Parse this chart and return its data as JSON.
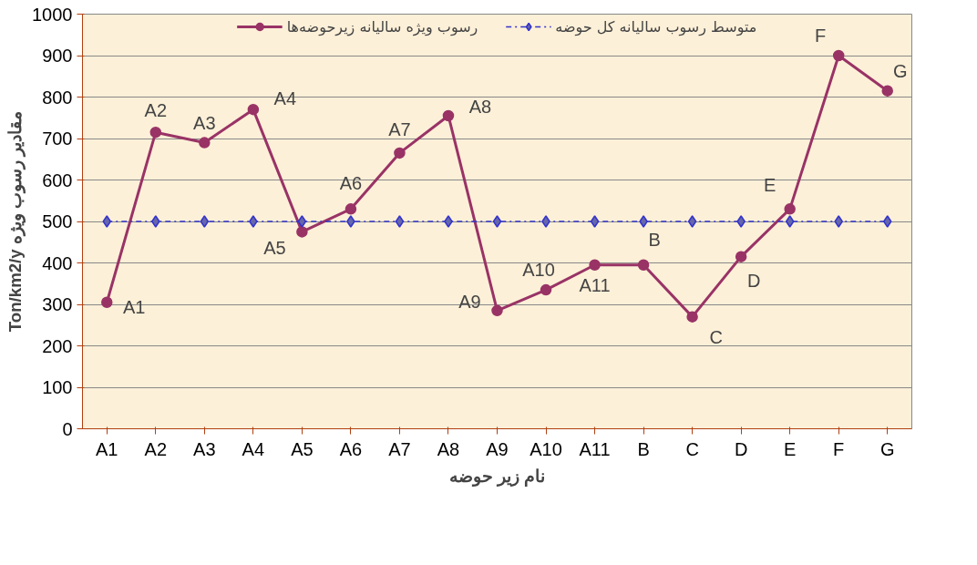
{
  "chart_data": {
    "type": "line",
    "xlabel": "نام زیر حوضه",
    "ylabel": "Ton/km2/y مقادیر رسوب ویژه",
    "categories": [
      "A1",
      "A2",
      "A3",
      "A4",
      "A5",
      "A6",
      "A7",
      "A8",
      "A9",
      "A10",
      "A11",
      "B",
      "C",
      "D",
      "E",
      "F",
      "G"
    ],
    "series": [
      {
        "name": "رسوب ویژه سالیانه زیرحوضه‌ها",
        "color": "#993366",
        "marker": "circle",
        "line_style": "solid",
        "values": [
          305,
          715,
          690,
          770,
          475,
          530,
          665,
          755,
          285,
          335,
          395,
          395,
          270,
          415,
          530,
          900,
          815
        ]
      },
      {
        "name": "متوسط رسوب سالیانه کل حوضه",
        "color": "#3333cc",
        "marker": "diamond",
        "line_style": "dashed",
        "values": [
          500,
          500,
          500,
          500,
          500,
          500,
          500,
          500,
          500,
          500,
          500,
          500,
          500,
          500,
          500,
          500,
          500
        ]
      }
    ],
    "annotations": [
      {
        "text": "A1",
        "x": "A1",
        "y": 305
      },
      {
        "text": "A2",
        "x": "A2",
        "y": 715
      },
      {
        "text": "A3",
        "x": "A3",
        "y": 690
      },
      {
        "text": "A4",
        "x": "A4",
        "y": 770
      },
      {
        "text": "A5",
        "x": "A5",
        "y": 475
      },
      {
        "text": "A6",
        "x": "A6",
        "y": 530
      },
      {
        "text": "A7",
        "x": "A7",
        "y": 665
      },
      {
        "text": "A8",
        "x": "A8",
        "y": 755
      },
      {
        "text": "A9",
        "x": "A9",
        "y": 285
      },
      {
        "text": "A10",
        "x": "A10",
        "y": 335
      },
      {
        "text": "A11",
        "x": "A11",
        "y": 395
      },
      {
        "text": "B",
        "x": "B",
        "y": 395
      },
      {
        "text": "C",
        "x": "C",
        "y": 270
      },
      {
        "text": "D",
        "x": "D",
        "y": 415
      },
      {
        "text": "E",
        "x": "E",
        "y": 530
      },
      {
        "text": "F",
        "x": "F",
        "y": 900
      },
      {
        "text": "G",
        "x": "G",
        "y": 815
      }
    ],
    "ylim": [
      0,
      1000
    ],
    "yticks": [
      0,
      100,
      200,
      300,
      400,
      500,
      600,
      700,
      800,
      900,
      1000
    ],
    "grid": "y",
    "legend": "top"
  }
}
